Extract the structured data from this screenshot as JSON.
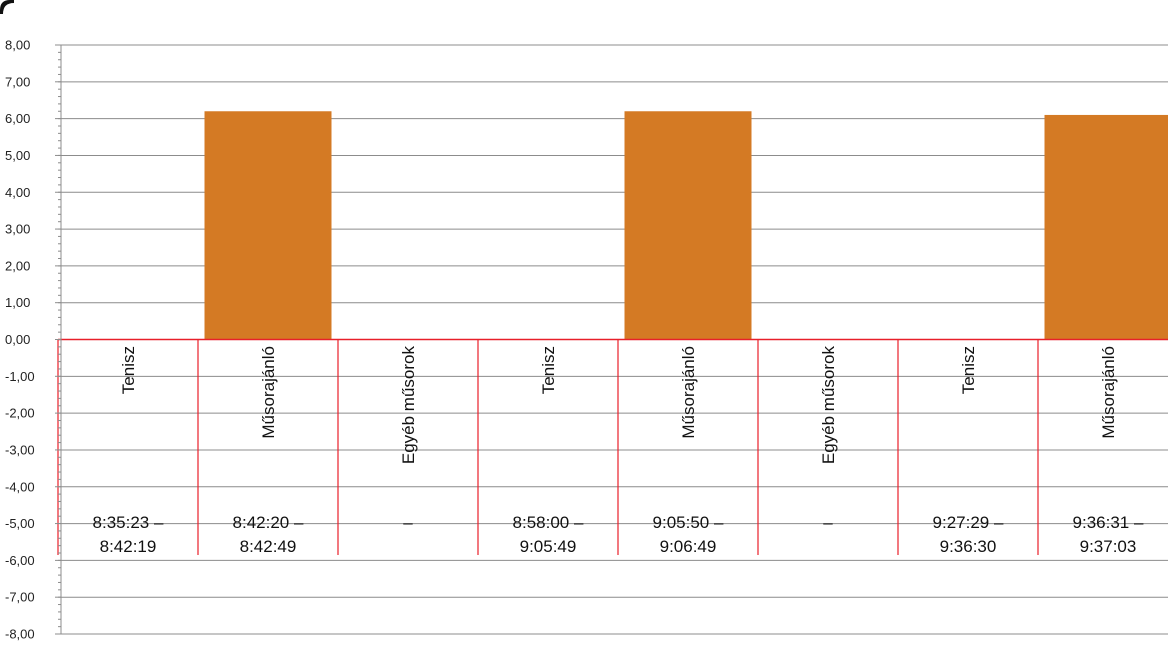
{
  "chart_data": {
    "type": "bar",
    "ylim": [
      -8,
      8
    ],
    "y_tick_step": 1,
    "y_tick_labels": [
      "8,00",
      "7,00",
      "6,00",
      "5,00",
      "4,00",
      "3,00",
      "2,00",
      "1,00",
      "0,00",
      "-1,00",
      "-2,00",
      "-3,00",
      "-4,00",
      "-5,00",
      "-6,00",
      "-7,00",
      "-8,00"
    ],
    "grid": true,
    "legend": "none",
    "bar_color": "#D47A24",
    "separator_color": "#E8202A",
    "categories": [
      {
        "label": "Tenisz",
        "time_line1": "8:35:23 –",
        "time_line2": "8:42:19",
        "value": 0
      },
      {
        "label": "Műsorajánló",
        "time_line1": "8:42:20 –",
        "time_line2": "8:42:49",
        "value": 6.2
      },
      {
        "label": "Egyéb műsorok",
        "time_line1": "–",
        "time_line2": "",
        "value": 0
      },
      {
        "label": "Tenisz",
        "time_line1": "8:58:00 –",
        "time_line2": "9:05:49",
        "value": 0
      },
      {
        "label": "Műsorajánló",
        "time_line1": "9:05:50 –",
        "time_line2": "9:06:49",
        "value": 6.2
      },
      {
        "label": "Egyéb műsorok",
        "time_line1": "–",
        "time_line2": "",
        "value": 0
      },
      {
        "label": "Tenisz",
        "time_line1": "9:27:29 –",
        "time_line2": "9:36:30",
        "value": 0
      },
      {
        "label": "Műsorajánló",
        "time_line1": "9:36:31 –",
        "time_line2": "9:37:03",
        "value": 6.1
      }
    ]
  }
}
